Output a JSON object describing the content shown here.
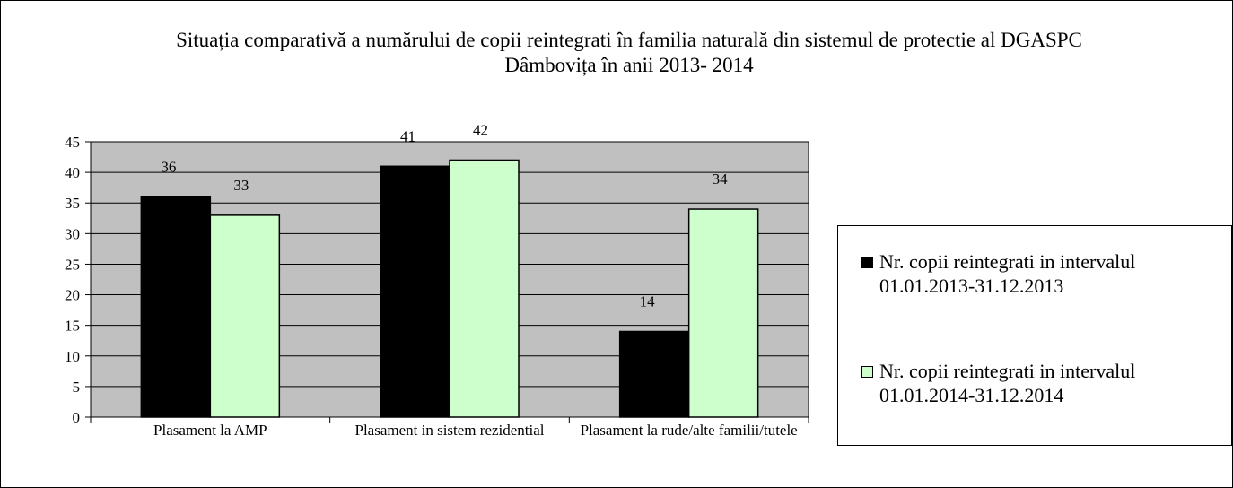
{
  "chart_data": {
    "type": "bar",
    "title": "Situația comparativă a numărului de copii reintegrati în familia naturală din sistemul de protectie al DGASPC Dâmbovița în anii 2013-   2014",
    "categories": [
      "Plasament la AMP",
      "Plasament in sistem rezidential",
      "Plasament la rude/alte familii/tutele"
    ],
    "series": [
      {
        "name": "Nr. copii  reintegrati in intervalul 01.01.2013-31.12.2013",
        "color": "#000000",
        "values": [
          36,
          41,
          14
        ]
      },
      {
        "name": "Nr. copii  reintegrati in intervalul 01.01.2014-31.12.2014",
        "color": "#ccffcc",
        "values": [
          33,
          42,
          34
        ]
      }
    ],
    "ylim": [
      0,
      45
    ],
    "yticks": [
      0,
      5,
      10,
      15,
      20,
      25,
      30,
      35,
      40,
      45
    ],
    "grid": true,
    "legend": "right"
  }
}
